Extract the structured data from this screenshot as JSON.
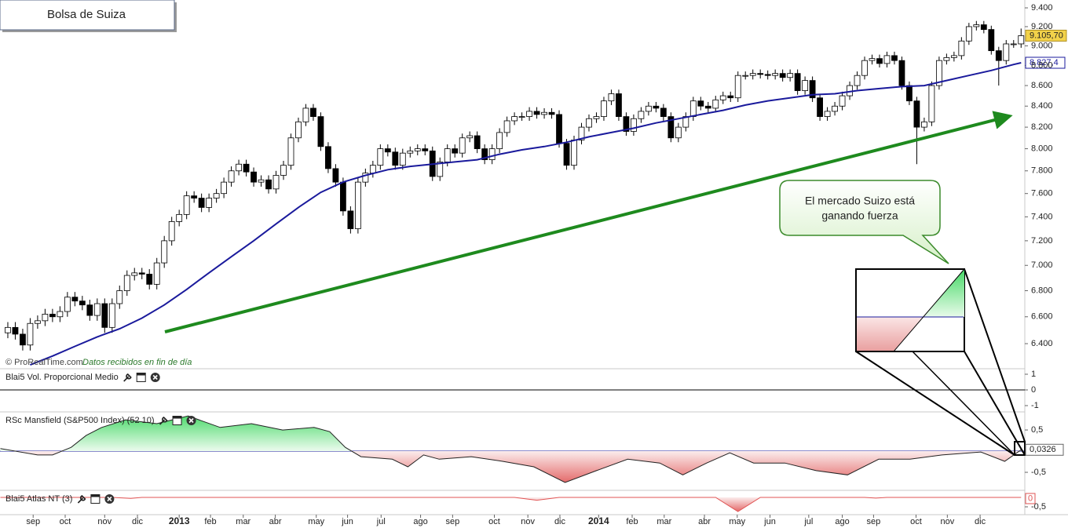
{
  "chart_data": [
    {
      "type": "candlestick",
      "title": "Bolsa de Suiza",
      "source": "© ProRealTime.com",
      "source_note": "Datos recibidos en fin de día",
      "annotation": [
        "El mercado Suizo está",
        "ganando fuerza"
      ],
      "log": true,
      "xlim": [
        -1.05,
        136.5
      ],
      "ylim": [
        6230,
        9485
      ],
      "xticks": [
        {
          "value": 3.4,
          "label": "sep"
        },
        {
          "value": 7.7,
          "label": "oct"
        },
        {
          "value": 13.0,
          "label": "nov"
        },
        {
          "value": 17.4,
          "label": "dic"
        },
        {
          "value": 23.0,
          "label": "2013"
        },
        {
          "value": 27.2,
          "label": "feb"
        },
        {
          "value": 31.6,
          "label": "mar"
        },
        {
          "value": 35.9,
          "label": "abr"
        },
        {
          "value": 41.4,
          "label": "may"
        },
        {
          "value": 45.6,
          "label": "jun"
        },
        {
          "value": 50.1,
          "label": "jul"
        },
        {
          "value": 55.4,
          "label": "ago"
        },
        {
          "value": 59.7,
          "label": "sep"
        },
        {
          "value": 65.3,
          "label": "oct"
        },
        {
          "value": 69.8,
          "label": "nov"
        },
        {
          "value": 74.1,
          "label": "dic"
        },
        {
          "value": 79.3,
          "label": "2014"
        },
        {
          "value": 83.8,
          "label": "feb"
        },
        {
          "value": 88.1,
          "label": "mar"
        },
        {
          "value": 93.5,
          "label": "abr"
        },
        {
          "value": 97.9,
          "label": "may"
        },
        {
          "value": 102.3,
          "label": "jun"
        },
        {
          "value": 107.5,
          "label": "jul"
        },
        {
          "value": 112.0,
          "label": "ago"
        },
        {
          "value": 116.2,
          "label": "sep"
        },
        {
          "value": 121.9,
          "label": "oct"
        },
        {
          "value": 126.1,
          "label": "nov"
        },
        {
          "value": 130.5,
          "label": "dic"
        }
      ],
      "yticks": [
        {
          "value": 6400,
          "label": "6.400"
        },
        {
          "value": 6600,
          "label": "6.600"
        },
        {
          "value": 6800,
          "label": "6.800"
        },
        {
          "value": 7000,
          "label": "7.000"
        },
        {
          "value": 7200,
          "label": "7.200"
        },
        {
          "value": 7400,
          "label": "7.400"
        },
        {
          "value": 7600,
          "label": "7.600"
        },
        {
          "value": 7800,
          "label": "7.800"
        },
        {
          "value": 8000,
          "label": "8.000"
        },
        {
          "value": 8200,
          "label": "8.200"
        },
        {
          "value": 8400,
          "label": "8.400"
        },
        {
          "value": 8600,
          "label": "8.600"
        },
        {
          "value": 8800,
          "label": "8.800"
        },
        {
          "value": 9000,
          "label": "9.000"
        },
        {
          "value": 9200,
          "label": "9.200"
        },
        {
          "value": 9400,
          "label": "9.400"
        }
      ],
      "up_color": "#ffffff",
      "down_color": "#000000",
      "open": [
        6480,
        6520,
        6470,
        6390,
        6550,
        6570,
        6620,
        6600,
        6640,
        6750,
        6720,
        6690,
        6610,
        6700,
        6520,
        6700,
        6800,
        6920,
        6940,
        6930,
        6850,
        7020,
        7200,
        7360,
        7420,
        7580,
        7560,
        7480,
        7560,
        7600,
        7700,
        7800,
        7860,
        7790,
        7700,
        7720,
        7640,
        7760,
        7850,
        8100,
        8250,
        8380,
        8300,
        8020,
        7820,
        7700,
        7450,
        7300,
        7700,
        7780,
        7850,
        8000,
        7970,
        7850,
        7960,
        7980,
        8000,
        7980,
        7750,
        7880,
        8000,
        7960,
        8100,
        8120,
        8000,
        7900,
        8000,
        8150,
        8260,
        8300,
        8300,
        8350,
        8320,
        8340,
        8320,
        8050,
        7850,
        8080,
        8200,
        8280,
        8300,
        8450,
        8520,
        8300,
        8160,
        8280,
        8350,
        8400,
        8380,
        8300,
        8100,
        8200,
        8300,
        8450,
        8400,
        8380,
        8460,
        8500,
        8480,
        8700,
        8700,
        8720,
        8710,
        8700,
        8720,
        8680,
        8720,
        8550,
        8650,
        8480,
        8300,
        8350,
        8400,
        8500,
        8600,
        8700,
        8850,
        8870,
        8820,
        8900,
        8850,
        8600,
        8450,
        8200,
        8250,
        8600,
        8850,
        8880,
        8900,
        9050,
        9200,
        9220,
        9170,
        8950,
        8850,
        9020,
        9020
      ],
      "high": [
        6560,
        6560,
        6510,
        6590,
        6610,
        6660,
        6660,
        6680,
        6790,
        6790,
        6760,
        6730,
        6740,
        6740,
        6740,
        6840,
        6960,
        6980,
        6980,
        6970,
        7060,
        7240,
        7400,
        7460,
        7620,
        7620,
        7600,
        7600,
        7640,
        7740,
        7840,
        7900,
        7900,
        7830,
        7760,
        7760,
        7800,
        7890,
        8140,
        8290,
        8420,
        8420,
        8340,
        8060,
        7860,
        7740,
        7490,
        7740,
        7820,
        7890,
        8040,
        8040,
        8010,
        8000,
        8020,
        8040,
        8040,
        8020,
        7920,
        8040,
        8040,
        8140,
        8160,
        8160,
        8040,
        8040,
        8190,
        8300,
        8340,
        8340,
        8390,
        8390,
        8380,
        8380,
        8360,
        8090,
        8120,
        8240,
        8320,
        8340,
        8490,
        8560,
        8560,
        8340,
        8320,
        8390,
        8440,
        8440,
        8420,
        8340,
        8240,
        8340,
        8490,
        8490,
        8440,
        8500,
        8540,
        8540,
        8740,
        8740,
        8760,
        8760,
        8750,
        8760,
        8760,
        8760,
        8760,
        8690,
        8690,
        8520,
        8390,
        8440,
        8540,
        8640,
        8740,
        8890,
        8910,
        8910,
        8940,
        8940,
        8890,
        8640,
        8490,
        8290,
        8640,
        8890,
        8920,
        8940,
        9090,
        9240,
        9260,
        9260,
        9210,
        8990,
        9060,
        9060,
        9180
      ],
      "low": [
        6440,
        6430,
        6350,
        6350,
        6510,
        6530,
        6560,
        6560,
        6600,
        6680,
        6650,
        6570,
        6570,
        6480,
        6480,
        6660,
        6760,
        6880,
        6890,
        6810,
        6810,
        6980,
        7160,
        7320,
        7380,
        7520,
        7440,
        7440,
        7520,
        7560,
        7660,
        7760,
        7750,
        7660,
        7660,
        7600,
        7600,
        7720,
        7810,
        8060,
        8210,
        8260,
        7980,
        7780,
        7660,
        7410,
        7260,
        7260,
        7660,
        7740,
        7810,
        7930,
        7810,
        7810,
        7920,
        7940,
        7940,
        7710,
        7710,
        7840,
        7920,
        7920,
        8060,
        7960,
        7860,
        7860,
        7960,
        8110,
        8220,
        8260,
        8260,
        8280,
        8280,
        8280,
        8010,
        7810,
        7810,
        8040,
        8160,
        8240,
        8260,
        8410,
        8260,
        8120,
        8120,
        8240,
        8310,
        8340,
        8260,
        8060,
        8060,
        8160,
        8260,
        8360,
        8340,
        8340,
        8420,
        8440,
        8440,
        8660,
        8660,
        8670,
        8660,
        8660,
        8640,
        8640,
        8510,
        8510,
        8440,
        8260,
        8260,
        8310,
        8360,
        8460,
        8560,
        8660,
        8810,
        8780,
        8780,
        8810,
        8560,
        8410,
        7860,
        8160,
        8210,
        8560,
        8810,
        8840,
        8860,
        9010,
        9160,
        9130,
        8910,
        8600,
        8810,
        8980,
        8980
      ],
      "close": [
        6520,
        6470,
        6390,
        6550,
        6570,
        6620,
        6600,
        6640,
        6750,
        6720,
        6690,
        6610,
        6700,
        6520,
        6700,
        6800,
        6920,
        6940,
        6930,
        6850,
        7020,
        7200,
        7360,
        7420,
        7580,
        7560,
        7480,
        7560,
        7600,
        7700,
        7800,
        7860,
        7790,
        7700,
        7720,
        7640,
        7760,
        7850,
        8100,
        8250,
        8380,
        8300,
        8020,
        7820,
        7700,
        7450,
        7300,
        7700,
        7780,
        7850,
        8000,
        7970,
        7850,
        7960,
        7980,
        8000,
        7980,
        7750,
        7880,
        8000,
        7960,
        8100,
        8120,
        8000,
        7900,
        8000,
        8150,
        8260,
        8300,
        8300,
        8350,
        8320,
        8340,
        8320,
        8050,
        7850,
        8080,
        8200,
        8280,
        8300,
        8450,
        8520,
        8300,
        8160,
        8280,
        8350,
        8400,
        8380,
        8300,
        8100,
        8200,
        8300,
        8450,
        8400,
        8380,
        8460,
        8500,
        8480,
        8700,
        8700,
        8720,
        8710,
        8700,
        8720,
        8680,
        8720,
        8550,
        8650,
        8480,
        8300,
        8350,
        8400,
        8500,
        8600,
        8700,
        8850,
        8870,
        8820,
        8900,
        8850,
        8600,
        8450,
        8200,
        8250,
        8600,
        8850,
        8880,
        8900,
        9050,
        9200,
        9220,
        9170,
        8950,
        8850,
        9020,
        9020,
        9105.7
      ],
      "last_label": "9.105,70",
      "last_label_color": "#f2d24a",
      "ma": {
        "color": "#1a1a9c",
        "last_label": "8.827,4",
        "x": [
          3,
          6,
          9,
          12,
          15,
          18,
          21,
          24,
          27,
          30,
          33,
          36,
          39,
          42,
          45,
          48,
          51,
          54,
          57,
          60,
          63,
          66,
          69,
          72,
          75,
          78,
          81,
          84,
          87,
          90,
          93,
          96,
          99,
          102,
          105,
          108,
          111,
          114,
          117,
          120,
          123,
          126,
          129,
          132,
          135,
          136
        ],
        "values": [
          6246,
          6310,
          6380,
          6450,
          6510,
          6590,
          6690,
          6810,
          6940,
          7070,
          7200,
          7340,
          7480,
          7610,
          7700,
          7760,
          7810,
          7840,
          7860,
          7880,
          7900,
          7950,
          7990,
          8020,
          8060,
          8110,
          8150,
          8190,
          8240,
          8280,
          8320,
          8360,
          8410,
          8450,
          8480,
          8510,
          8520,
          8550,
          8570,
          8590,
          8600,
          8650,
          8700,
          8750,
          8810,
          8827.4
        ]
      }
    },
    {
      "type": "indicator",
      "title": "Blai5 Vol. Proporcional Medio",
      "xlim": [
        -1.05,
        136.5
      ],
      "ylim": [
        -1.25,
        1.25
      ],
      "yticks": [
        1,
        0,
        -1
      ],
      "zero_line_color": "#000000"
    },
    {
      "type": "area",
      "title": "RSc Mansfield (S&P500 Index) (52 10)",
      "xlim": [
        -1.05,
        136.5
      ],
      "ylim": [
        -0.87,
        0.89
      ],
      "yticks": [
        {
          "value": 0.5,
          "label": "0,5"
        },
        {
          "value": -0.5,
          "label": "-0,5"
        }
      ],
      "zero_line_color": "#1a1a9c",
      "positive_color": "#46d866",
      "negative_color": "#e05454",
      "last_label": "0,0326",
      "x": [
        -1,
        1,
        4,
        6,
        8.5,
        10.5,
        12.6,
        15.8,
        20,
        24.2,
        28.5,
        32.7,
        36.9,
        41.1,
        43.2,
        45.3,
        47.4,
        51.6,
        53.7,
        55.8,
        57.9,
        62.2,
        66.4,
        70.6,
        74.8,
        79,
        83.2,
        87.5,
        90.6,
        93.8,
        96.9,
        100.1,
        104.3,
        108.5,
        112.7,
        116.9,
        121.1,
        125.4,
        130.6,
        133.8,
        136
      ],
      "values": [
        0.06,
        0,
        -0.09,
        -0.09,
        0.09,
        0.37,
        0.56,
        0.74,
        0.65,
        0.83,
        0.56,
        0.65,
        0.5,
        0.56,
        0.46,
        0.09,
        -0.13,
        -0.19,
        -0.37,
        -0.09,
        -0.19,
        -0.13,
        -0.24,
        -0.37,
        -0.74,
        -0.46,
        -0.19,
        -0.28,
        -0.56,
        -0.28,
        -0.04,
        -0.28,
        -0.28,
        -0.46,
        -0.56,
        -0.19,
        -0.19,
        -0.09,
        -0.02,
        -0.24,
        0.0326
      ]
    },
    {
      "type": "area",
      "title": "Blai5 Atlas NT (3)",
      "xlim": [
        -1.05,
        136.5
      ],
      "ylim": [
        -0.875,
        0.29
      ],
      "yticks": [
        {
          "value": -0.5,
          "label": "-0,5"
        }
      ],
      "positive_color": "#46d866",
      "negative_color": "#e05454",
      "last_label_color": "#e05454",
      "x": [
        -1,
        14,
        16.5,
        18,
        68,
        71,
        74,
        95,
        98,
        101,
        115,
        116.5,
        118,
        136
      ],
      "values": [
        0,
        0,
        -0.05,
        0,
        0,
        -0.15,
        0,
        0,
        -0.75,
        0,
        0,
        -0.04,
        0,
        0
      ]
    }
  ]
}
